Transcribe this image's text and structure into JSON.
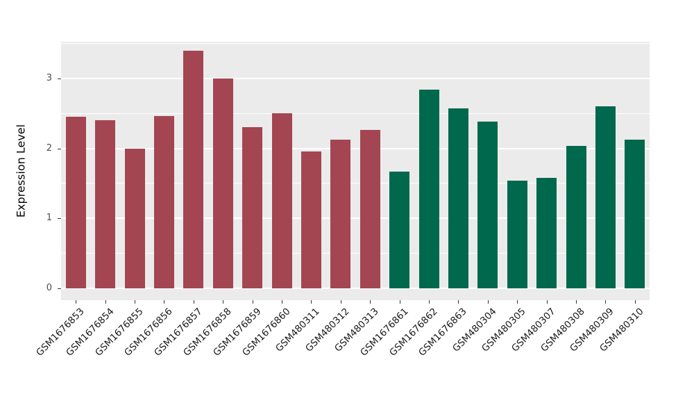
{
  "figure": {
    "background": "#ffffff"
  },
  "y_axis": {
    "title": "Expression Level",
    "tick_labels": [
      "0",
      "1",
      "2",
      "3"
    ]
  },
  "chart_data": {
    "type": "bar",
    "title": "",
    "xlabel": "",
    "ylabel": "Expression Level",
    "ylim": [
      0,
      3.53
    ],
    "yticks": [
      0,
      1,
      2,
      3
    ],
    "minor_ticks": [
      0.5,
      1.5,
      2.5,
      3.5
    ],
    "grid": true,
    "legend": "none",
    "panel_background": "#EBEBEB",
    "gridline_color": "#FFFFFF",
    "categories": [
      "GSM1676853",
      "GSM1676854",
      "GSM1676855",
      "GSM1676856",
      "GSM1676857",
      "GSM1676858",
      "GSM1676859",
      "GSM1676860",
      "GSM480311",
      "GSM480312",
      "GSM480313",
      "GSM1676861",
      "GSM1676862",
      "GSM1676863",
      "GSM480304",
      "GSM480305",
      "GSM480307",
      "GSM480308",
      "GSM480309",
      "GSM480310"
    ],
    "values": [
      2.45,
      2.4,
      2.0,
      2.46,
      3.4,
      3.0,
      2.3,
      2.5,
      1.96,
      2.13,
      2.26,
      1.67,
      2.84,
      2.57,
      2.38,
      1.54,
      1.58,
      2.04,
      2.6,
      2.13
    ],
    "groups": [
      "groupA",
      "groupA",
      "groupA",
      "groupA",
      "groupA",
      "groupA",
      "groupA",
      "groupA",
      "groupA",
      "groupA",
      "groupA",
      "groupB",
      "groupB",
      "groupB",
      "groupB",
      "groupB",
      "groupB",
      "groupB",
      "groupB",
      "groupB"
    ],
    "group_colors": {
      "groupA": "#A34652",
      "groupB": "#00684C"
    }
  }
}
